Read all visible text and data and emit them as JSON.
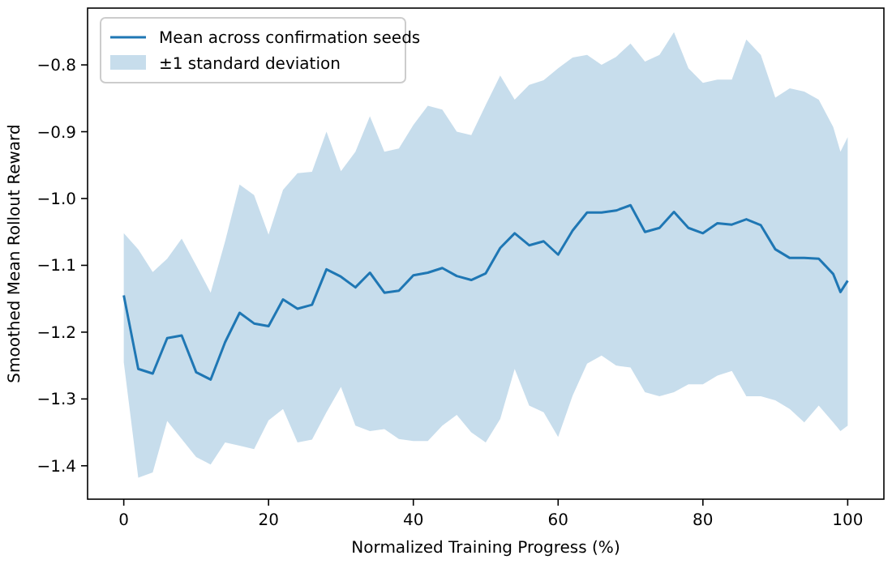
{
  "chart_data": {
    "type": "line",
    "xlabel": "Normalized Training Progress (%)",
    "ylabel": "Smoothed Mean Rollout Reward",
    "x": [
      0,
      2,
      4,
      6,
      8,
      10,
      12,
      14,
      16,
      18,
      20,
      22,
      24,
      26,
      28,
      30,
      32,
      34,
      36,
      38,
      40,
      42,
      44,
      46,
      48,
      50,
      52,
      54,
      56,
      58,
      60,
      62,
      64,
      66,
      68,
      70,
      72,
      74,
      76,
      78,
      80,
      82,
      84,
      86,
      88,
      90,
      92,
      94,
      96,
      98,
      99,
      100
    ],
    "series": [
      {
        "name": "Mean across confirmation seeds",
        "color": "#1f77b4",
        "values": [
          -1.145,
          -1.255,
          -1.262,
          -1.209,
          -1.205,
          -1.26,
          -1.271,
          -1.215,
          -1.171,
          -1.187,
          -1.191,
          -1.151,
          -1.165,
          -1.159,
          -1.106,
          -1.117,
          -1.133,
          -1.111,
          -1.141,
          -1.138,
          -1.115,
          -1.111,
          -1.104,
          -1.116,
          -1.122,
          -1.112,
          -1.074,
          -1.052,
          -1.07,
          -1.064,
          -1.084,
          -1.048,
          -1.021,
          -1.021,
          -1.018,
          -1.01,
          -1.05,
          -1.044,
          -1.02,
          -1.044,
          -1.052,
          -1.037,
          -1.039,
          -1.031,
          -1.04,
          -1.076,
          -1.089,
          -1.089,
          -1.09,
          -1.113,
          -1.14,
          -1.123
        ],
        "upper": [
          -1.052,
          -1.076,
          -1.11,
          -1.09,
          -1.06,
          -1.1,
          -1.141,
          -1.064,
          -0.979,
          -0.995,
          -1.054,
          -0.987,
          -0.962,
          -0.96,
          -0.9,
          -0.959,
          -0.93,
          -0.877,
          -0.93,
          -0.925,
          -0.89,
          -0.861,
          -0.867,
          -0.9,
          -0.905,
          -0.86,
          -0.816,
          -0.852,
          -0.83,
          -0.823,
          -0.805,
          -0.789,
          -0.785,
          -0.8,
          -0.788,
          -0.768,
          -0.795,
          -0.785,
          -0.751,
          -0.805,
          -0.827,
          -0.822,
          -0.822,
          -0.762,
          -0.785,
          -0.849,
          -0.835,
          -0.84,
          -0.852,
          -0.893,
          -0.93,
          -0.908
        ],
        "lower": [
          -1.245,
          -1.418,
          -1.41,
          -1.333,
          -1.36,
          -1.387,
          -1.398,
          -1.365,
          -1.37,
          -1.375,
          -1.332,
          -1.315,
          -1.365,
          -1.361,
          -1.32,
          -1.282,
          -1.34,
          -1.348,
          -1.345,
          -1.36,
          -1.363,
          -1.363,
          -1.34,
          -1.324,
          -1.35,
          -1.365,
          -1.33,
          -1.255,
          -1.31,
          -1.32,
          -1.357,
          -1.295,
          -1.247,
          -1.235,
          -1.25,
          -1.253,
          -1.29,
          -1.296,
          -1.29,
          -1.278,
          -1.278,
          -1.265,
          -1.258,
          -1.296,
          -1.296,
          -1.302,
          -1.315,
          -1.335,
          -1.31,
          -1.335,
          -1.348,
          -1.34
        ]
      }
    ],
    "annotations": [
      "±1 standard deviation"
    ],
    "xlim": [
      -5,
      105
    ],
    "xticks": [
      0,
      20,
      40,
      60,
      80,
      100
    ],
    "ylim": [
      -1.45,
      -0.715
    ],
    "yticks": [
      {
        "value": -1.4,
        "label": "−1.4"
      },
      {
        "value": -1.3,
        "label": "−1.3"
      },
      {
        "value": -1.2,
        "label": "−1.2"
      },
      {
        "value": -1.1,
        "label": "−1.1"
      },
      {
        "value": -1.0,
        "label": "−1.0"
      },
      {
        "value": -0.9,
        "label": "−0.9"
      },
      {
        "value": -0.8,
        "label": "−0.8"
      }
    ],
    "legend": "top left",
    "grid": false,
    "marker": "none",
    "line_style": "solid"
  }
}
